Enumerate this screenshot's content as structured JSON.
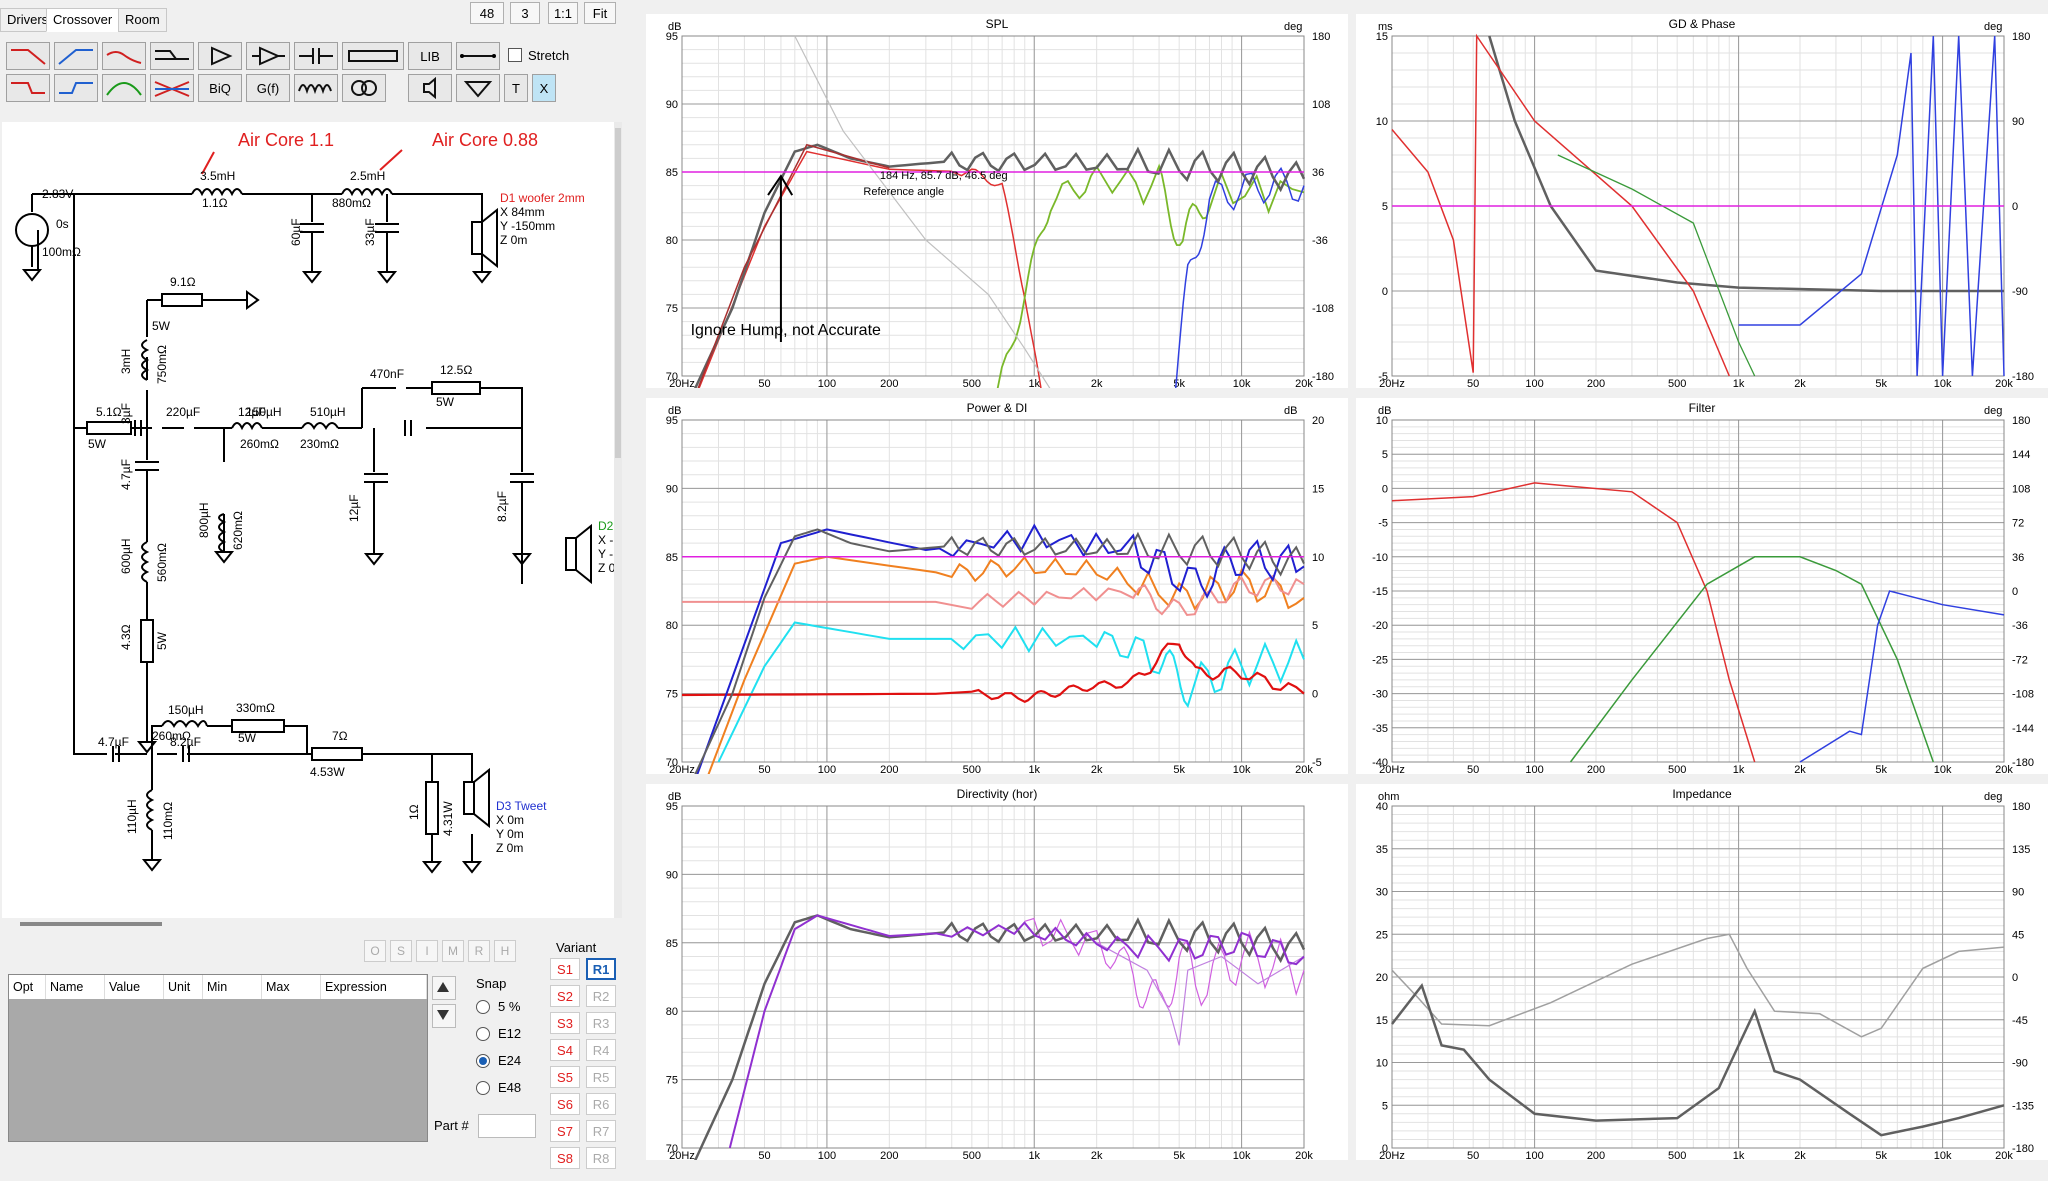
{
  "tabs": [
    "Drivers",
    "Crossover",
    "Room"
  ],
  "top_controls": {
    "num1": "48",
    "num2": "3",
    "ratio": "1:1",
    "fit": "Fit"
  },
  "toolbar": {
    "lib": "LIB",
    "stretch": "Stretch",
    "biq": "BiQ",
    "gf": "G(f)",
    "t": "T",
    "x": "X"
  },
  "annotations": {
    "aircore1": "Air Core 1.1",
    "aircore2": "Air Core 0.88",
    "ignore": "Ignore Hump, not Accurate"
  },
  "schematic": {
    "source_v": "2.83V",
    "source_t": "0s",
    "source_r": "100mΩ",
    "l1": "3.5mH",
    "l1r": "1.1Ω",
    "l2": "2.5mH",
    "l2r": "880mΩ",
    "c1": "60µF",
    "c2": "33µF",
    "d1": [
      "D1 woofer 2mm",
      "X 84mm",
      "Y -150mm",
      "Z 0m"
    ],
    "r_91": "9.1Ω",
    "l3": "3mH",
    "l3r": "750mΩ",
    "c3": "3µF",
    "r51": "5.1Ω",
    "r51w": "5W",
    "c4": "220µF",
    "c5": "12µF",
    "c6": "4.7µF",
    "l4": "800µH",
    "l4r": "620mΩ",
    "l5": "600µH",
    "l5r": "560mΩ",
    "r43": "4.3Ω",
    "r43w": "5W",
    "l6": "150µH",
    "l6r": "260mΩ",
    "l7": "510µH",
    "l7r": "230mΩ",
    "c7": "470nF",
    "r125": "12.5Ω",
    "r125w": "5W",
    "c8": "12µF",
    "c9": "8.2µF",
    "d2": [
      "D2",
      "X -",
      "Y -",
      "Z 0"
    ],
    "c10": "4.7µF",
    "l8": "150µH",
    "l8r": "260mΩ",
    "r330": "330mΩ",
    "r330w": "5W",
    "c11": "8.2µF",
    "l9": "110µH",
    "l9r": "110mΩ",
    "r7": "7Ω",
    "r7w": "4.53W",
    "r1": "1Ω",
    "r1w": "4.31W",
    "d3": [
      "D3 Tweet",
      "X 0m",
      "Y 0m",
      "Z 0m"
    ],
    "w5": "5W"
  },
  "opt_buttons": [
    "O",
    "S",
    "I",
    "M",
    "R",
    "H"
  ],
  "table_columns": [
    "Opt",
    "Name",
    "Value",
    "Unit",
    "Min",
    "Max",
    "Expression"
  ],
  "snap": {
    "label": "Snap",
    "options": [
      "5 %",
      "E12",
      "E24",
      "E48"
    ],
    "selected": "E24"
  },
  "part_label": "Part #",
  "variant": {
    "label": "Variant",
    "s": [
      "S1",
      "S2",
      "S3",
      "S4",
      "S5",
      "S6",
      "S7",
      "S8"
    ],
    "r": [
      "R1",
      "R2",
      "R3",
      "R4",
      "R5",
      "R6",
      "R7",
      "R8"
    ]
  },
  "x_ticks": [
    "20Hz",
    "50",
    "100",
    "200",
    "500",
    "1k",
    "2k",
    "5k",
    "10k",
    "20k"
  ],
  "charts": {
    "spl": {
      "title": "SPL",
      "ylabel": "dB",
      "y2label": "deg",
      "yticks": [
        "95",
        "90",
        "85",
        "80",
        "75",
        "70"
      ],
      "y2ticks": [
        "180",
        "108",
        "36",
        "-36",
        "-108",
        "-180"
      ],
      "cursor": "184 Hz, 85.7 dB, 46.5 deg",
      "cursor2": "Reference angle"
    },
    "gd": {
      "title": "GD & Phase",
      "ylabel": "ms",
      "y2label": "deg",
      "yticks": [
        "15",
        "10",
        "5",
        "0",
        "-5"
      ],
      "y2ticks": [
        "180",
        "90",
        "0",
        "-90",
        "-180"
      ]
    },
    "power": {
      "title": "Power & DI",
      "ylabel": "dB",
      "y2label": "dB",
      "yticks": [
        "95",
        "90",
        "85",
        "80",
        "75",
        "70"
      ],
      "y2ticks": [
        "20",
        "15",
        "10",
        "5",
        "0",
        "-5"
      ]
    },
    "filter": {
      "title": "Filter",
      "ylabel": "dB",
      "y2label": "deg",
      "yticks": [
        "10",
        "5",
        "0",
        "-5",
        "-10",
        "-15",
        "-20",
        "-25",
        "-30",
        "-35",
        "-40"
      ],
      "y2ticks": [
        "180",
        "144",
        "108",
        "72",
        "36",
        "0",
        "-36",
        "-72",
        "-108",
        "-144",
        "-180"
      ]
    },
    "dir": {
      "title": "Directivity (hor)",
      "ylabel": "dB",
      "yticks": [
        "95",
        "90",
        "85",
        "80",
        "75",
        "70"
      ]
    },
    "imp": {
      "title": "Impedance",
      "ylabel": "ohm",
      "y2label": "deg",
      "yticks": [
        "40",
        "35",
        "30",
        "25",
        "20",
        "15",
        "10",
        "5",
        "0"
      ],
      "y2ticks": [
        "180",
        "135",
        "90",
        "45",
        "0",
        "-45",
        "-90",
        "-135",
        "-180"
      ]
    }
  },
  "colors": {
    "woofer": "#e03030",
    "mid": "#7ab82a",
    "tweet": "#3040e0",
    "sum": "#606060",
    "ref": "#e020e0"
  }
}
